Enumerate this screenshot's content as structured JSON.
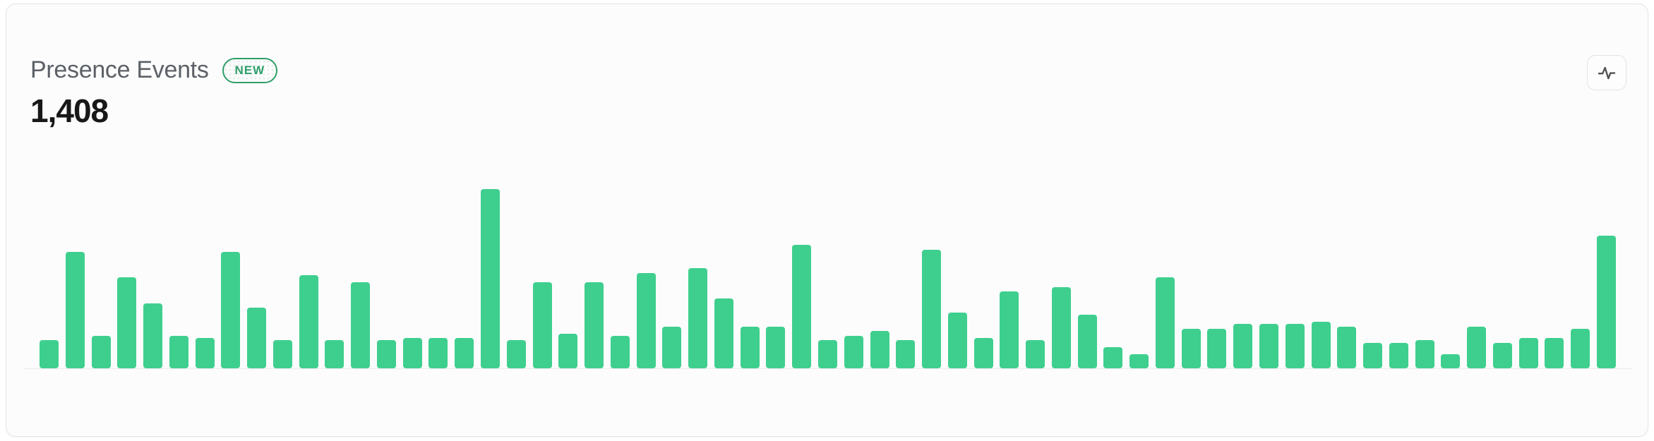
{
  "card": {
    "title": "Presence Events",
    "badge": "NEW",
    "count": "1,408"
  },
  "toolbar": {
    "chart_style_icon": "activity-icon"
  },
  "colors": {
    "bar_green": "#3ecf8e",
    "badge_green": "#2f9e6a",
    "title_gray": "#5c6167",
    "count_color": "#181818",
    "card_background": "#fcfcfc",
    "card_border": "#e2e5e3",
    "baseline_gray": "#ececec",
    "icon_gray": "#4f4f4f"
  },
  "chart_data": {
    "type": "bar",
    "title": "Presence Events",
    "total": 1408,
    "total_label": "1,408",
    "num_bars": 61,
    "values": [
      12,
      50,
      14,
      39,
      28,
      14,
      13,
      50,
      26,
      12,
      40,
      12,
      37,
      12,
      13,
      13,
      13,
      77,
      12,
      37,
      15,
      37,
      14,
      41,
      18,
      43,
      30,
      18,
      18,
      53,
      12,
      14,
      16,
      12,
      51,
      24,
      13,
      33,
      12,
      35,
      23,
      9,
      6,
      39,
      17,
      17,
      19,
      19,
      19,
      20,
      18,
      11,
      11,
      12,
      6,
      18,
      11,
      13,
      13,
      17,
      57
    ],
    "ylim": [
      0,
      80
    ],
    "xlabel": "",
    "ylabel": "",
    "axis_labels_visible": false,
    "gridlines": false,
    "legend": "none",
    "bar_color": "#3ecf8e"
  }
}
